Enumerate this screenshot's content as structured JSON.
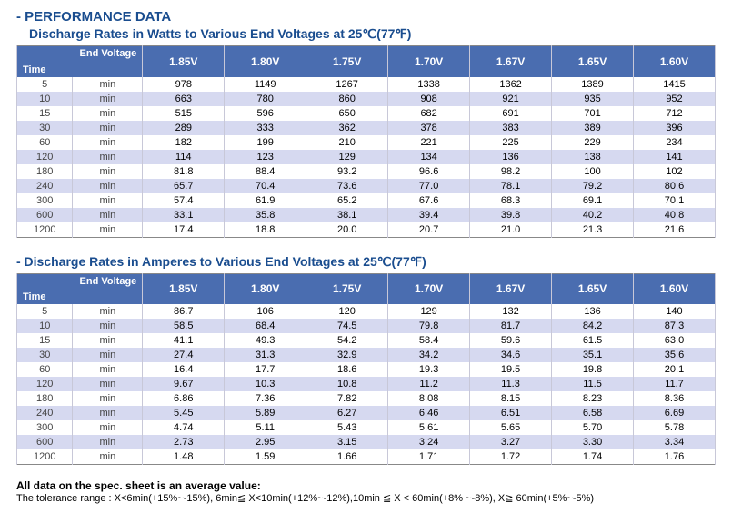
{
  "headings": {
    "main": "- PERFORMANCE DATA",
    "sub1": "Discharge Rates in Watts to Various End Voltages at 25℃(77℉)",
    "sub2": "- Discharge Rates in Amperes to Various End Voltages at 25℃(77℉)"
  },
  "corner": {
    "top": "End Voltage",
    "bottom": "Time"
  },
  "voltages": [
    "1.85V",
    "1.80V",
    "1.75V",
    "1.70V",
    "1.67V",
    "1.65V",
    "1.60V"
  ],
  "unit_label": "min",
  "times": [
    "5",
    "10",
    "15",
    "30",
    "60",
    "120",
    "180",
    "240",
    "300",
    "600",
    "1200"
  ],
  "watts": {
    "rows": [
      [
        "978",
        "1149",
        "1267",
        "1338",
        "1362",
        "1389",
        "1415"
      ],
      [
        "663",
        "780",
        "860",
        "908",
        "921",
        "935",
        "952"
      ],
      [
        "515",
        "596",
        "650",
        "682",
        "691",
        "701",
        "712"
      ],
      [
        "289",
        "333",
        "362",
        "378",
        "383",
        "389",
        "396"
      ],
      [
        "182",
        "199",
        "210",
        "221",
        "225",
        "229",
        "234"
      ],
      [
        "114",
        "123",
        "129",
        "134",
        "136",
        "138",
        "141"
      ],
      [
        "81.8",
        "88.4",
        "93.2",
        "96.6",
        "98.2",
        "100",
        "102"
      ],
      [
        "65.7",
        "70.4",
        "73.6",
        "77.0",
        "78.1",
        "79.2",
        "80.6"
      ],
      [
        "57.4",
        "61.9",
        "65.2",
        "67.6",
        "68.3",
        "69.1",
        "70.1"
      ],
      [
        "33.1",
        "35.8",
        "38.1",
        "39.4",
        "39.8",
        "40.2",
        "40.8"
      ],
      [
        "17.4",
        "18.8",
        "20.0",
        "20.7",
        "21.0",
        "21.3",
        "21.6"
      ]
    ]
  },
  "amperes": {
    "rows": [
      [
        "86.7",
        "106",
        "120",
        "129",
        "132",
        "136",
        "140"
      ],
      [
        "58.5",
        "68.4",
        "74.5",
        "79.8",
        "81.7",
        "84.2",
        "87.3"
      ],
      [
        "41.1",
        "49.3",
        "54.2",
        "58.4",
        "59.6",
        "61.5",
        "63.0"
      ],
      [
        "27.4",
        "31.3",
        "32.9",
        "34.2",
        "34.6",
        "35.1",
        "35.6"
      ],
      [
        "16.4",
        "17.7",
        "18.6",
        "19.3",
        "19.5",
        "19.8",
        "20.1"
      ],
      [
        "9.67",
        "10.3",
        "10.8",
        "11.2",
        "11.3",
        "11.5",
        "11.7"
      ],
      [
        "6.86",
        "7.36",
        "7.82",
        "8.08",
        "8.15",
        "8.23",
        "8.36"
      ],
      [
        "5.45",
        "5.89",
        "6.27",
        "6.46",
        "6.51",
        "6.58",
        "6.69"
      ],
      [
        "4.74",
        "5.11",
        "5.43",
        "5.61",
        "5.65",
        "5.70",
        "5.78"
      ],
      [
        "2.73",
        "2.95",
        "3.15",
        "3.24",
        "3.27",
        "3.30",
        "3.34"
      ],
      [
        "1.48",
        "1.59",
        "1.66",
        "1.71",
        "1.72",
        "1.74",
        "1.76"
      ]
    ]
  },
  "footer": {
    "line1": "All data on the spec. sheet is an average value:",
    "line2": "The tolerance range : X<6min(+15%~-15%), 6min≦ X<10min(+12%~-12%),10min ≦ X < 60min(+8% ~-8%), X≧ 60min(+5%~-5%)"
  },
  "style": {
    "header_bg": "#4a6db0",
    "header_fg": "#ffffff",
    "row_alt_bg": "#d6d9f0",
    "title_color": "#1a4d8f",
    "border_color": "#c8c8d8",
    "col_widths_pct": {
      "time": 8,
      "unit": 10,
      "data": 11.71
    }
  }
}
